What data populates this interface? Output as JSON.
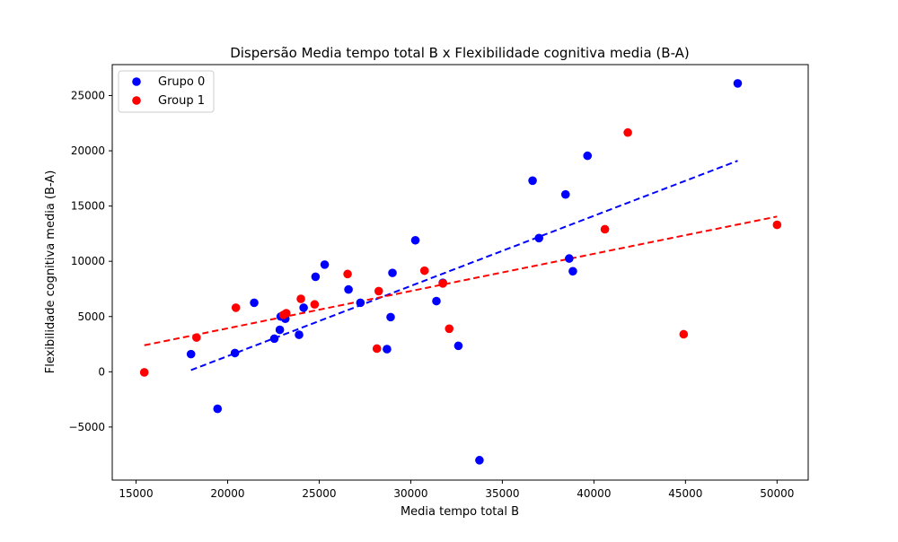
{
  "chart_data": {
    "type": "scatter",
    "title": "Dispersão Media tempo total B x Flexibilidade cognitiva media (B-A)",
    "xlabel": "Media tempo total B",
    "ylabel": "Flexibilidade cognitiva media (B-A)",
    "xlim": [
      13700,
      51700
    ],
    "ylim": [
      -9800,
      27800
    ],
    "xticks": [
      15000,
      20000,
      25000,
      30000,
      35000,
      40000,
      45000,
      50000
    ],
    "yticks": [
      -5000,
      0,
      5000,
      10000,
      15000,
      20000,
      25000
    ],
    "grid": false,
    "legend_position": "upper-left",
    "series": [
      {
        "name": "Grupo 0",
        "color": "#0000ff",
        "points": [
          [
            18000,
            1600
          ],
          [
            19450,
            -3350
          ],
          [
            20400,
            1700
          ],
          [
            21450,
            6250
          ],
          [
            22550,
            3000
          ],
          [
            22850,
            3800
          ],
          [
            22900,
            5000
          ],
          [
            23150,
            4800
          ],
          [
            23900,
            3350
          ],
          [
            24150,
            5800
          ],
          [
            24800,
            8600
          ],
          [
            25300,
            9700
          ],
          [
            26600,
            7450
          ],
          [
            27250,
            6250
          ],
          [
            28700,
            2050
          ],
          [
            28900,
            4950
          ],
          [
            29000,
            8950
          ],
          [
            30250,
            11900
          ],
          [
            31400,
            6400
          ],
          [
            31750,
            8050
          ],
          [
            32600,
            2350
          ],
          [
            33750,
            -8000
          ],
          [
            36650,
            17300
          ],
          [
            37000,
            12100
          ],
          [
            38450,
            16050
          ],
          [
            38650,
            10250
          ],
          [
            38850,
            9100
          ],
          [
            39650,
            19550
          ],
          [
            47850,
            26100
          ]
        ],
        "fit": {
          "x_start": 18000,
          "x_end": 47850,
          "y_start": 150,
          "y_end": 19100
        }
      },
      {
        "name": "Group 1",
        "color": "#ff0000",
        "points": [
          [
            15450,
            -50
          ],
          [
            18300,
            3100
          ],
          [
            20450,
            5800
          ],
          [
            23050,
            5150
          ],
          [
            23200,
            5300
          ],
          [
            24000,
            6600
          ],
          [
            24750,
            6100
          ],
          [
            26550,
            8850
          ],
          [
            28150,
            2100
          ],
          [
            28250,
            7300
          ],
          [
            30750,
            9150
          ],
          [
            31750,
            8000
          ],
          [
            32100,
            3900
          ],
          [
            40600,
            12900
          ],
          [
            41850,
            21650
          ],
          [
            44900,
            3400
          ],
          [
            50000,
            13300
          ]
        ],
        "fit": {
          "x_start": 15450,
          "x_end": 50000,
          "y_start": 2400,
          "y_end": 14050
        }
      }
    ]
  }
}
